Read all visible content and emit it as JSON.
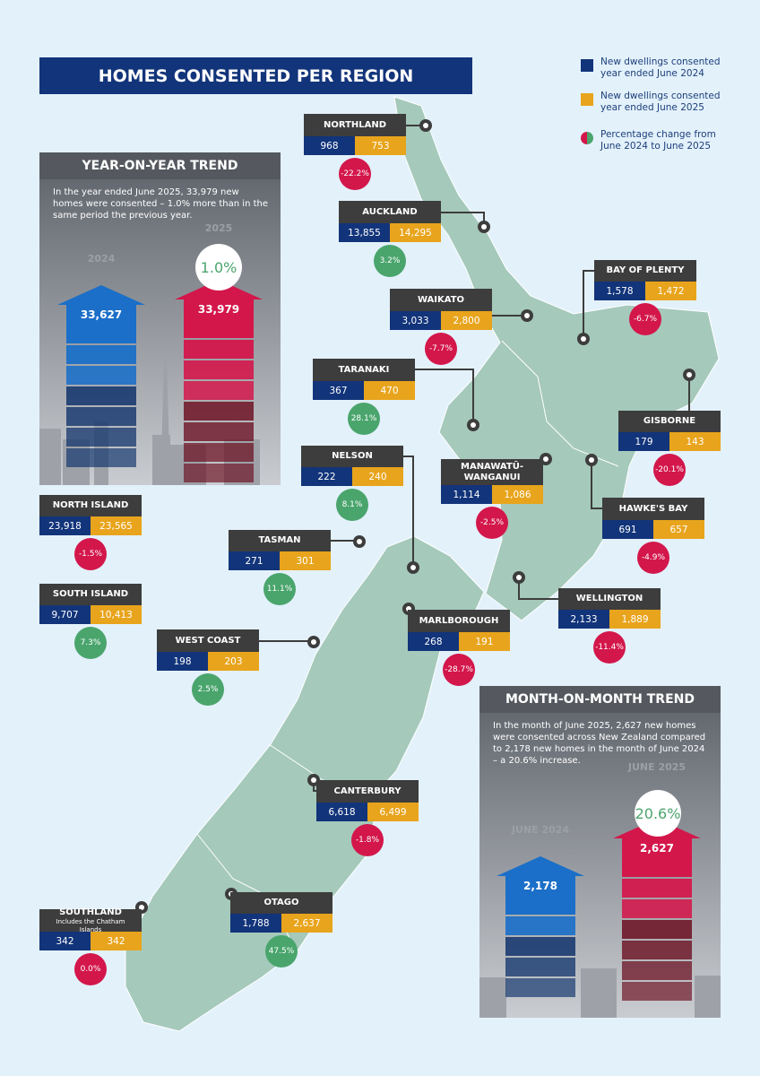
{
  "header": {
    "title": "HOMES CONSENTED PER REGION"
  },
  "legend": [
    {
      "label": "New dwellings consented year ended June 2024",
      "color": "#12347a"
    },
    {
      "label": "New dwellings consented year ended June 2025",
      "color": "#e8a41c"
    },
    {
      "label": "Percentage change from June 2024 to June 2025",
      "color": "#d3174b",
      "color2": "#4aa56d"
    }
  ],
  "yoy": {
    "title": "YEAR-ON-YEAR TREND",
    "text": "In the year ended June 2025, 33,979 new homes were consented – 1.0% more than in the same period the previous year.",
    "labels": [
      "2024",
      "2025"
    ],
    "values": [
      "33,627",
      "33,979"
    ],
    "change": "1.0%"
  },
  "mom": {
    "title": "MONTH-ON-MONTH TREND",
    "text": "In the month of June 2025, 2,627 new homes were consented across New Zealand compared to 2,178 new homes in the month of June 2024 – a 20.6% increase.",
    "labels": [
      "JUNE 2024",
      "JUNE 2025"
    ],
    "values": [
      "2,178",
      "2,627"
    ],
    "change": "20.6%"
  },
  "regions": [
    {
      "name": "NORTHLAND",
      "values": [
        "968",
        "753"
      ],
      "change": "-22.2%",
      "color": "#d3174b"
    },
    {
      "name": "AUCKLAND",
      "values": [
        "13,855",
        "14,295"
      ],
      "change": "3.2%",
      "color": "#4aa56d"
    },
    {
      "name": "WAIKATO",
      "values": [
        "3,033",
        "2,800"
      ],
      "change": "-7.7%",
      "color": "#d3174b"
    },
    {
      "name": "BAY OF PLENTY",
      "values": [
        "1,578",
        "1,472"
      ],
      "change": "-6.7%",
      "color": "#d3174b"
    },
    {
      "name": "TARANAKI",
      "values": [
        "367",
        "470"
      ],
      "change": "28.1%",
      "color": "#4aa56d"
    },
    {
      "name": "GISBORNE",
      "values": [
        "179",
        "143"
      ],
      "change": "-20.1%",
      "color": "#d3174b"
    },
    {
      "name": "NELSON",
      "values": [
        "222",
        "240"
      ],
      "change": "8.1%",
      "color": "#4aa56d"
    },
    {
      "name": "MANAWATŪ-WANGANUI",
      "values": [
        "1,114",
        "1,086"
      ],
      "change": "-2.5%",
      "color": "#d3174b"
    },
    {
      "name": "HAWKE'S BAY",
      "values": [
        "691",
        "657"
      ],
      "change": "-4.9%",
      "color": "#d3174b"
    },
    {
      "name": "NORTH ISLAND",
      "values": [
        "23,918",
        "23,565"
      ],
      "change": "-1.5%",
      "color": "#d3174b"
    },
    {
      "name": "TASMAN",
      "values": [
        "271",
        "301"
      ],
      "change": "11.1%",
      "color": "#4aa56d"
    },
    {
      "name": "SOUTH ISLAND",
      "values": [
        "9,707",
        "10,413"
      ],
      "change": "7.3%",
      "color": "#4aa56d"
    },
    {
      "name": "WELLINGTON",
      "values": [
        "2,133",
        "1,889"
      ],
      "change": "-11.4%",
      "color": "#d3174b"
    },
    {
      "name": "MARLBOROUGH",
      "values": [
        "268",
        "191"
      ],
      "change": "-28.7%",
      "color": "#d3174b"
    },
    {
      "name": "WEST COAST",
      "values": [
        "198",
        "203"
      ],
      "change": "2.5%",
      "color": "#4aa56d"
    },
    {
      "name": "CANTERBURY",
      "values": [
        "6,618",
        "6,499"
      ],
      "change": "-1.8%",
      "color": "#d3174b"
    },
    {
      "name": "SOUTHLAND",
      "note": "Includes the Chatham Islands",
      "values": [
        "342",
        "342"
      ],
      "change": "0.0%",
      "color": "#d3174b"
    },
    {
      "name": "OTAGO",
      "values": [
        "1,788",
        "2,637"
      ],
      "change": "47.5%",
      "color": "#4aa56d"
    }
  ]
}
